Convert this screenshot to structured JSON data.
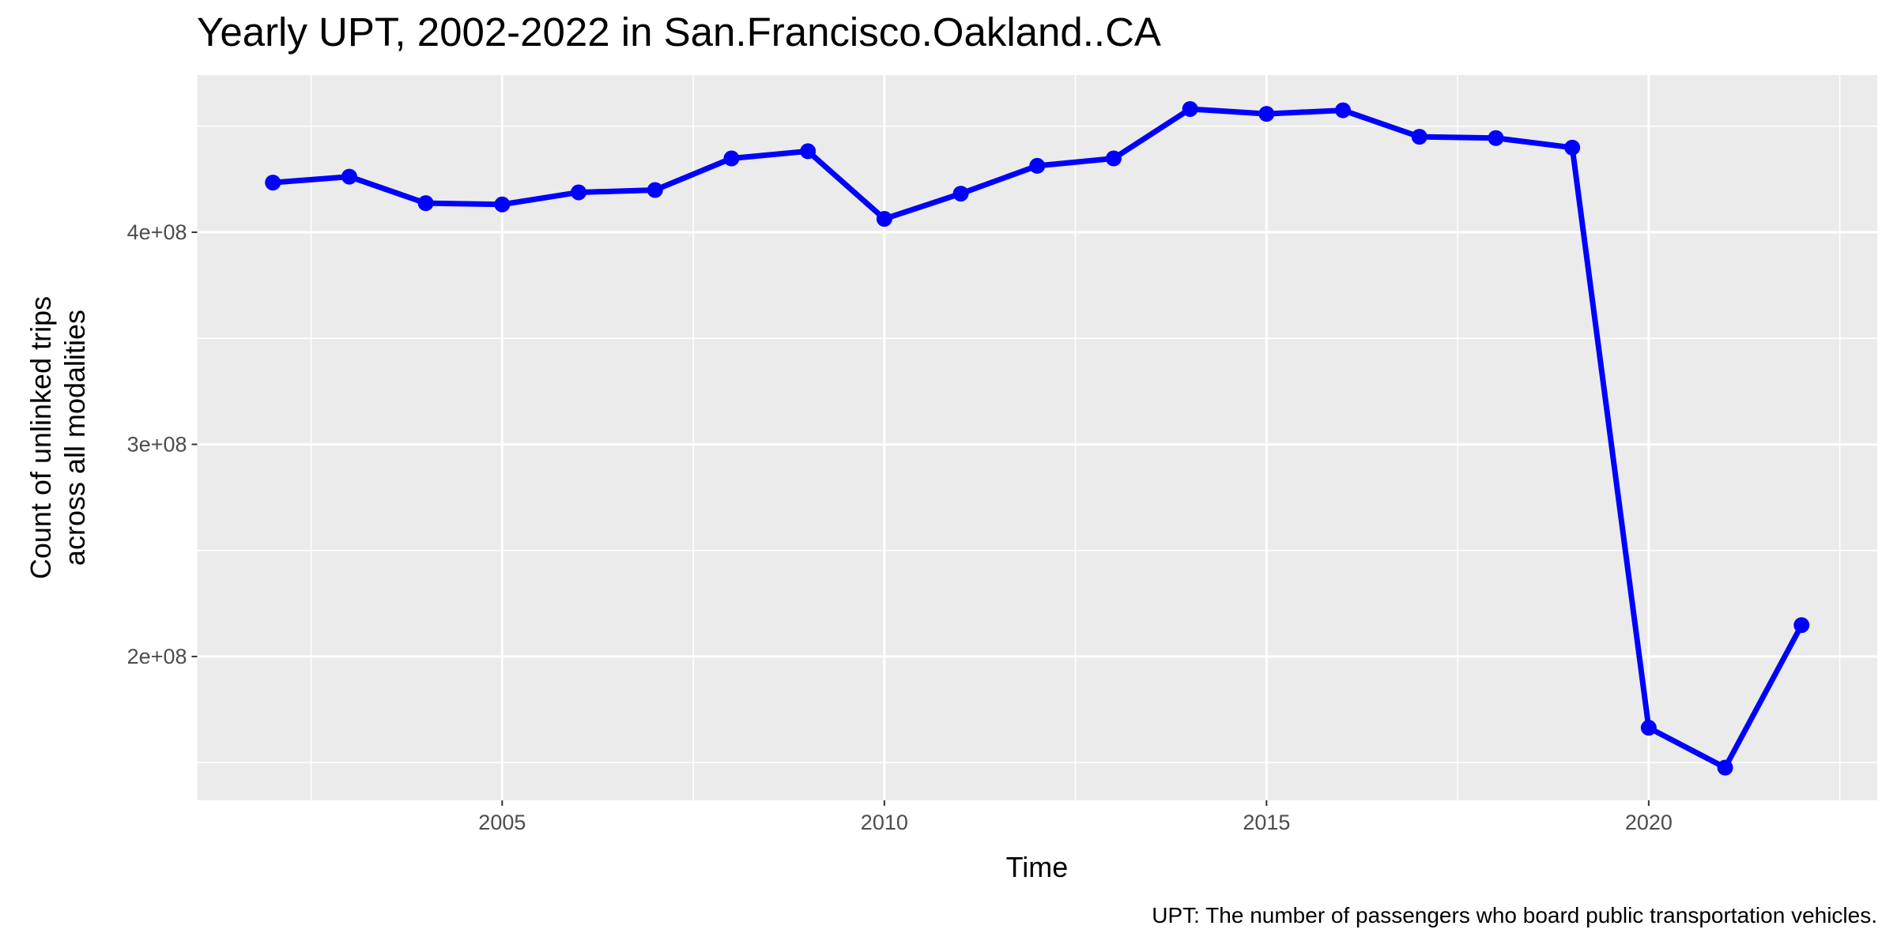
{
  "chart_data": {
    "type": "line",
    "title": "Yearly UPT, 2002-2022 in San.Francisco.Oakland..CA",
    "x_label": "Time",
    "y_label": [
      "Count of unlinked trips",
      "across all modalities"
    ],
    "caption": "UPT: The number of passengers who board public transportation vehicles.",
    "x": [
      2002,
      2003,
      2004,
      2005,
      2006,
      2007,
      2008,
      2009,
      2010,
      2011,
      2012,
      2013,
      2014,
      2015,
      2016,
      2017,
      2018,
      2019,
      2020,
      2021,
      2022
    ],
    "series": [
      {
        "name": "UPT",
        "color": "#0000ff",
        "values": [
          423400000,
          426200000,
          413700000,
          413100000,
          418800000,
          419900000,
          434800000,
          438200000,
          406300000,
          418200000,
          431300000,
          434800000,
          458100000,
          455800000,
          457500000,
          445000000,
          444400000,
          439900000,
          166400000,
          147600000,
          214800000
        ]
      }
    ],
    "xlim": [
      2001.01,
      2022.99
    ],
    "ylim": [
      132200000,
      474100000
    ],
    "xticks": [
      2005,
      2010,
      2015,
      2020
    ],
    "yticks": [
      {
        "value": 200000000,
        "label": "2e+08"
      },
      {
        "value": 300000000,
        "label": "3e+08"
      },
      {
        "value": 400000000,
        "label": "4e+08"
      }
    ],
    "xminor": [
      2002.5,
      2007.5,
      2012.5,
      2017.5,
      2022.5
    ],
    "yminor": [
      150000000,
      250000000,
      350000000,
      450000000
    ],
    "grid": true,
    "panel_color": "#ebebeb"
  }
}
